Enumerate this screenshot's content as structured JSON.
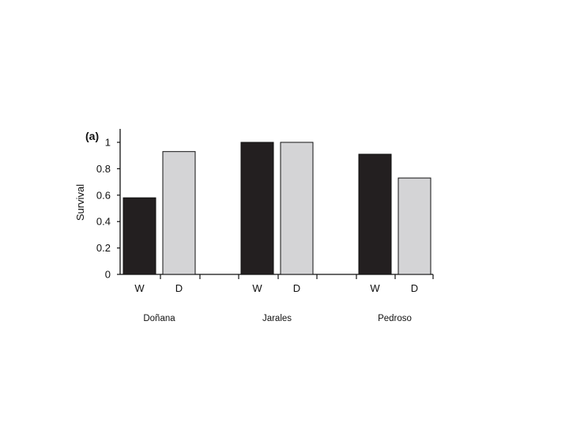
{
  "chart_data": {
    "type": "bar",
    "panel_label": "(a)",
    "title": "",
    "ylabel": "Survival",
    "xlabel": "",
    "ylim": [
      0,
      1
    ],
    "yticks": [
      "0",
      "0.2",
      "0.4",
      "0.6",
      "0.8",
      "1"
    ],
    "groups": [
      {
        "name": "Doñana",
        "bars": [
          {
            "label": "W",
            "value": 0.58,
            "color": "#231f20"
          },
          {
            "label": "D",
            "value": 0.93,
            "color": "#d4d4d6"
          }
        ]
      },
      {
        "name": "Jarales",
        "bars": [
          {
            "label": "W",
            "value": 1.0,
            "color": "#231f20"
          },
          {
            "label": "D",
            "value": 1.0,
            "color": "#d4d4d6"
          }
        ]
      },
      {
        "name": "Pedroso",
        "bars": [
          {
            "label": "W",
            "value": 0.91,
            "color": "#231f20"
          },
          {
            "label": "D",
            "value": 0.73,
            "color": "#d4d4d6"
          }
        ]
      }
    ],
    "grid": false,
    "legend": "none"
  }
}
